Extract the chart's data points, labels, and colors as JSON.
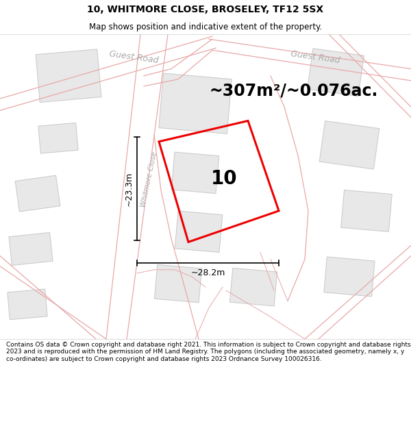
{
  "title": "10, WHITMORE CLOSE, BROSELEY, TF12 5SX",
  "subtitle": "Map shows position and indicative extent of the property.",
  "area_text": "~307m²/~0.076ac.",
  "width_label": "~28.2m",
  "height_label": "~23.3m",
  "property_number": "10",
  "footer": "Contains OS data © Crown copyright and database right 2021. This information is subject to Crown copyright and database rights 2023 and is reproduced with the permission of HM Land Registry. The polygons (including the associated geometry, namely x, y co-ordinates) are subject to Crown copyright and database rights 2023 Ordnance Survey 100026316.",
  "bg_color": "#f7f7f7",
  "road_line_color": "#e8a8a8",
  "road_fill_color": "#fceaea",
  "building_fill": "#e8e8e8",
  "building_edge": "#c8c8c8",
  "road_label_color": "#aaaaaa",
  "red_color": "#ee0000",
  "black": "#000000",
  "title_fontsize": 10,
  "subtitle_fontsize": 8.5,
  "area_fontsize": 17,
  "number_fontsize": 20,
  "dim_fontsize": 9,
  "footer_fontsize": 6.5
}
